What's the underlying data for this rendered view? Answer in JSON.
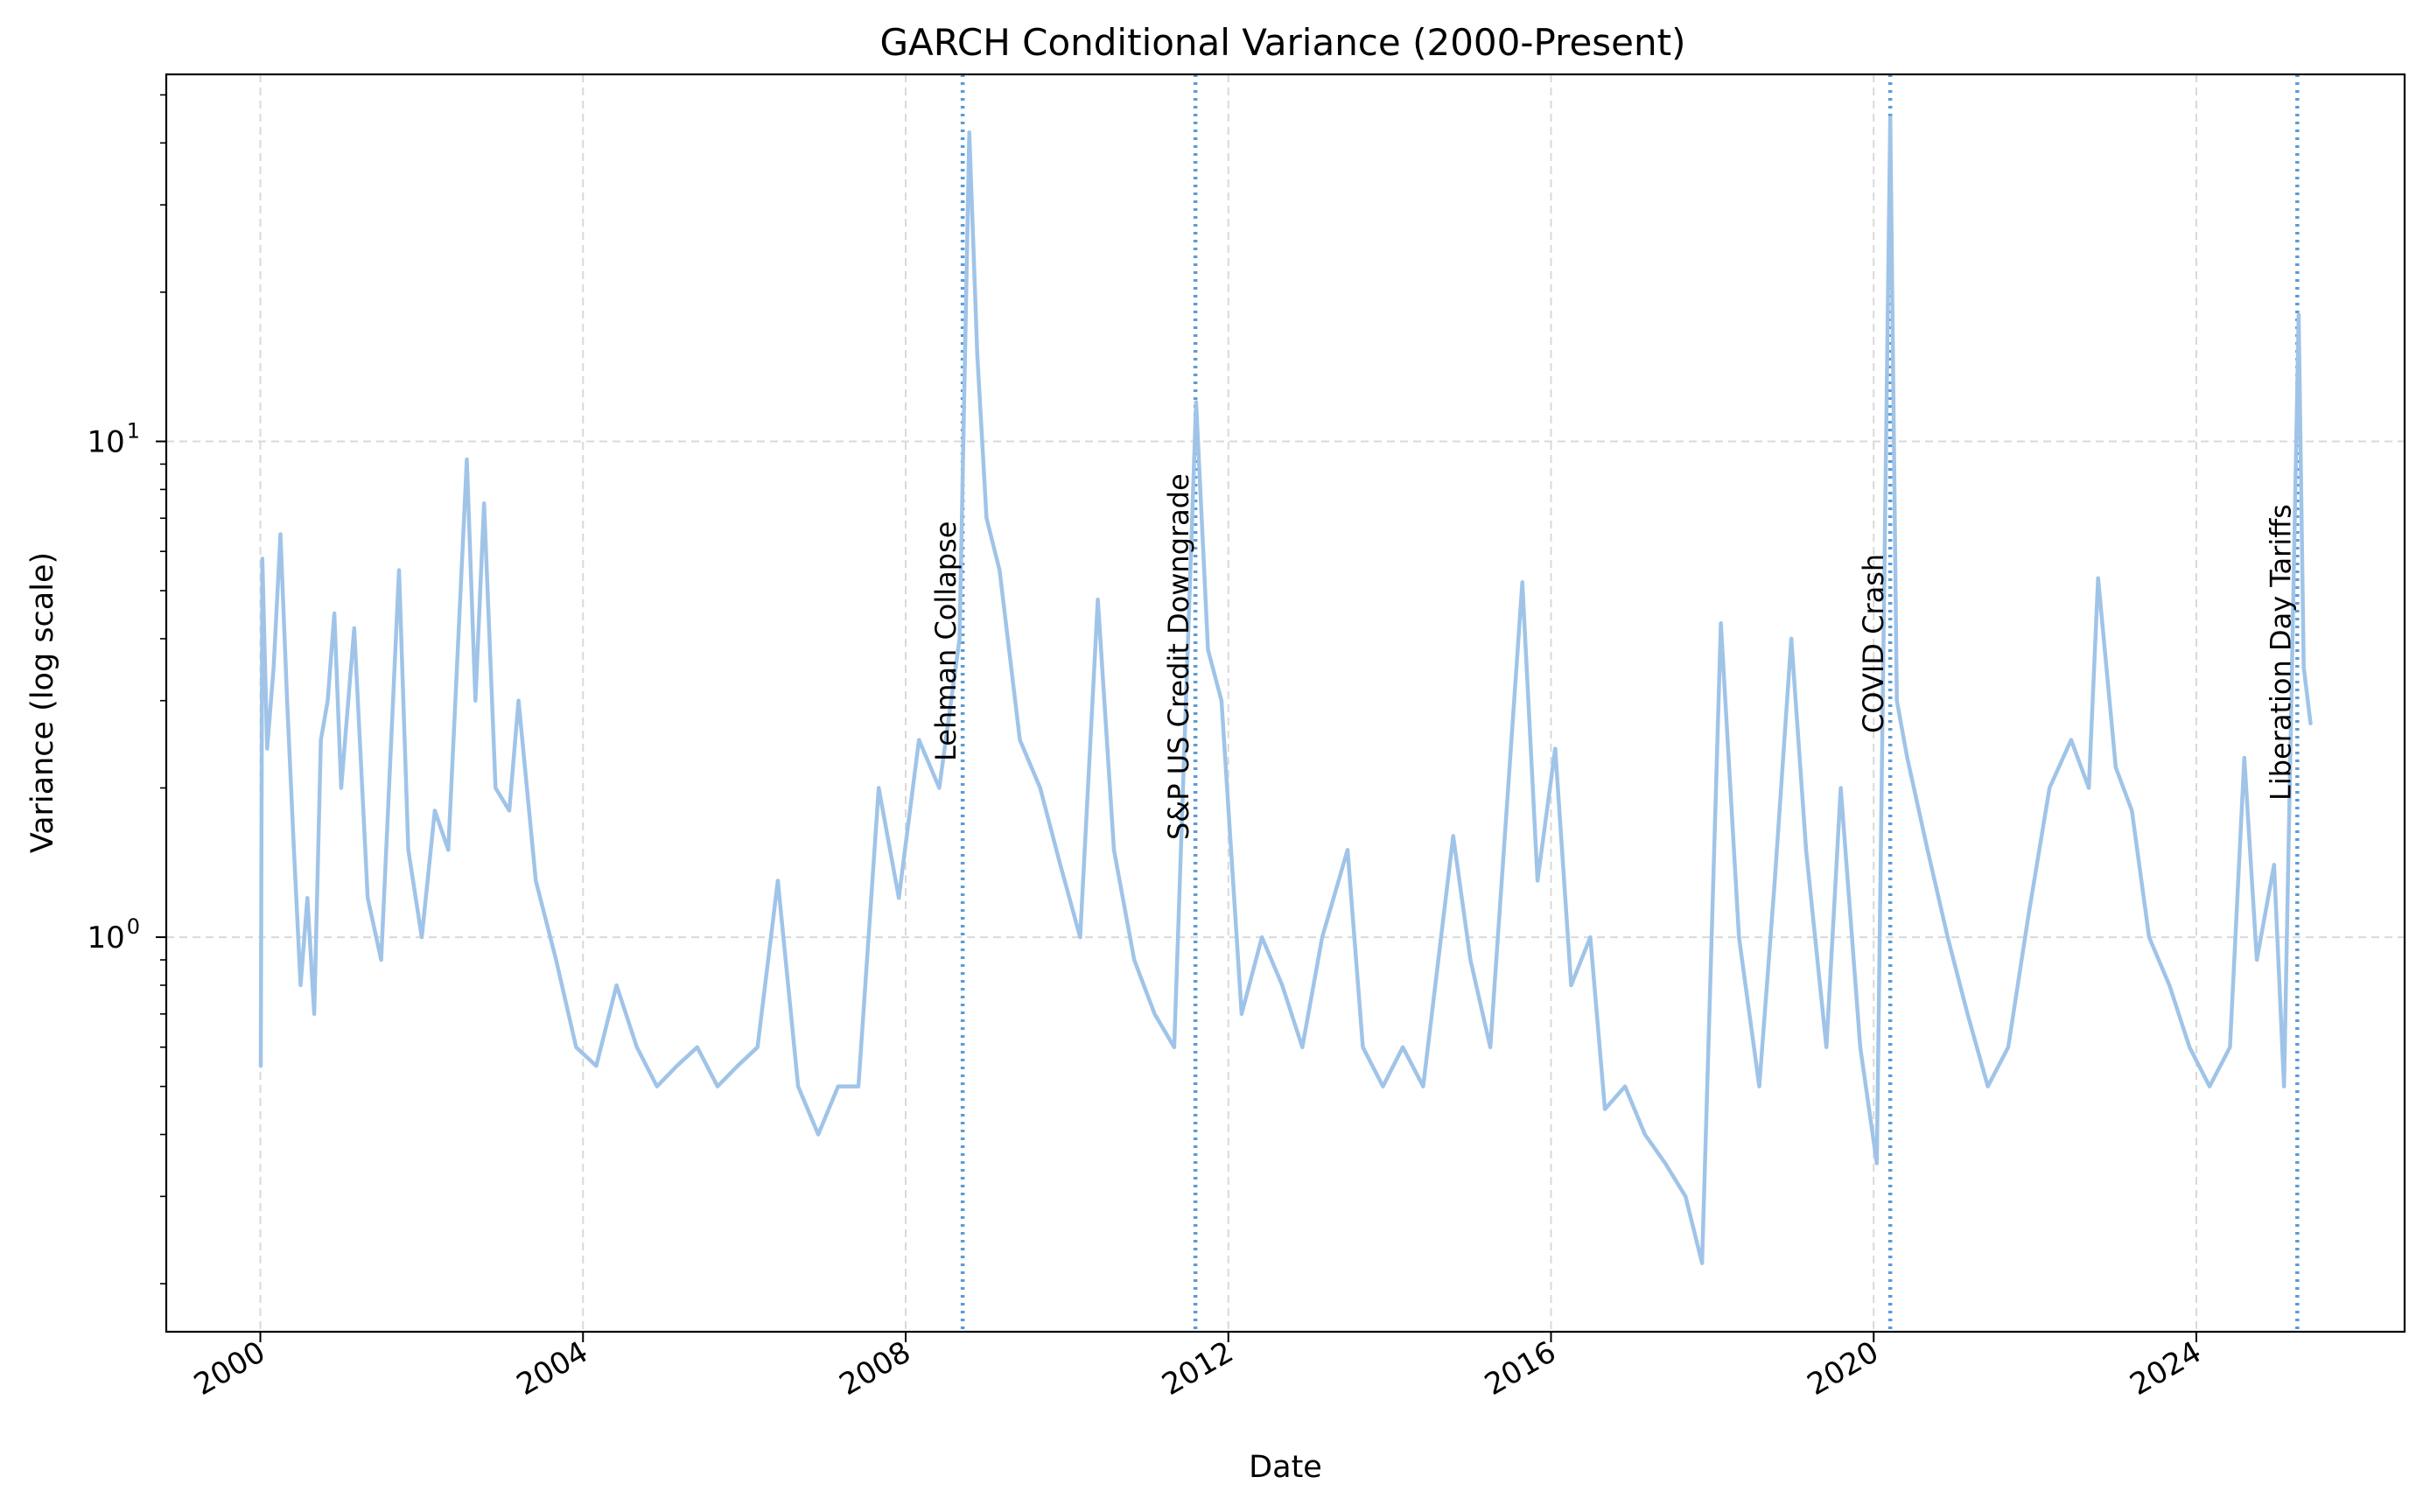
{
  "chart_data": {
    "type": "line",
    "title": "GARCH Conditional Variance (2000-Present)",
    "xlabel": "Date",
    "ylabel": "Variance (log scale)",
    "y_scale": "log",
    "ylim": [
      0.16,
      55
    ],
    "xlim": [
      "1998-11-01",
      "2026-08-01"
    ],
    "grid": true,
    "x_ticks": [
      "2000",
      "2004",
      "2008",
      "2012",
      "2016",
      "2020",
      "2024"
    ],
    "y_ticks": [
      {
        "base": "10",
        "exp": "0",
        "value": 1
      },
      {
        "base": "10",
        "exp": "1",
        "value": 10
      }
    ],
    "line_color": "#a0c4e8",
    "event_line_color": "#5b9bd5",
    "events": [
      {
        "date": "2008-09-15",
        "label": "Lehman Collapse"
      },
      {
        "date": "2011-08-05",
        "label": "S&P US Credit Downgrade"
      },
      {
        "date": "2020-03-16",
        "label": "COVID Crash"
      },
      {
        "date": "2025-04-02",
        "label": "Liberation Day Tariffs"
      }
    ],
    "series": [
      {
        "x": [
          "2000-01-03",
          "2000-01-10",
          "2000-02-01",
          "2000-03-01",
          "2000-04-01",
          "2000-05-01",
          "2000-06-01",
          "2000-07-01",
          "2000-08-01",
          "2000-09-01",
          "2000-10-01",
          "2000-11-01",
          "2000-12-01",
          "2001-01-01",
          "2001-03-01",
          "2001-05-01",
          "2001-07-01",
          "2001-09-20",
          "2001-11-01",
          "2002-01-01",
          "2002-03-01",
          "2002-05-01",
          "2002-07-24",
          "2002-09-01",
          "2002-10-10",
          "2002-12-01",
          "2003-02-01",
          "2003-03-15",
          "2003-06-01",
          "2003-09-01",
          "2003-12-01",
          "2004-03-01",
          "2004-06-01",
          "2004-09-01",
          "2004-12-01",
          "2005-03-01",
          "2005-06-01",
          "2005-09-01",
          "2005-12-01",
          "2006-03-01",
          "2006-06-01",
          "2006-09-01",
          "2006-12-01",
          "2007-03-01",
          "2007-06-01",
          "2007-09-01",
          "2007-12-01",
          "2008-03-01",
          "2008-06-01",
          "2008-09-01",
          "2008-10-15",
          "2008-11-20",
          "2009-01-01",
          "2009-03-01",
          "2009-06-01",
          "2009-09-01",
          "2009-12-01",
          "2010-03-01",
          "2010-05-20",
          "2010-08-01",
          "2010-11-01",
          "2011-02-01",
          "2011-05-01",
          "2011-08-08",
          "2011-10-01",
          "2011-12-01",
          "2012-03-01",
          "2012-06-01",
          "2012-09-01",
          "2012-12-01",
          "2013-03-01",
          "2013-06-24",
          "2013-09-01",
          "2013-12-01",
          "2014-03-01",
          "2014-06-01",
          "2014-10-15",
          "2015-01-01",
          "2015-04-01",
          "2015-08-24",
          "2015-11-01",
          "2016-01-20",
          "2016-04-01",
          "2016-06-27",
          "2016-09-01",
          "2016-12-01",
          "2017-03-01",
          "2017-06-01",
          "2017-09-01",
          "2017-11-15",
          "2018-02-08",
          "2018-05-01",
          "2018-08-01",
          "2018-10-10",
          "2018-12-24",
          "2019-03-01",
          "2019-06-01",
          "2019-08-05",
          "2019-11-01",
          "2020-01-15",
          "2020-03-16",
          "2020-04-15",
          "2020-06-01",
          "2020-09-01",
          "2020-12-01",
          "2021-03-01",
          "2021-06-01",
          "2021-09-01",
          "2021-12-01",
          "2022-03-07",
          "2022-06-13",
          "2022-09-01",
          "2022-10-13",
          "2023-01-01",
          "2023-03-15",
          "2023-06-01",
          "2023-09-01",
          "2023-12-01",
          "2024-03-01",
          "2024-06-01",
          "2024-08-05",
          "2024-10-01",
          "2024-12-18",
          "2025-02-01",
          "2025-04-08",
          "2025-05-01",
          "2025-06-01"
        ],
        "values": [
          0.55,
          5.8,
          2.4,
          3.5,
          6.5,
          3.0,
          1.5,
          0.8,
          1.2,
          0.7,
          2.5,
          3.0,
          4.5,
          2.0,
          4.2,
          1.2,
          0.9,
          5.5,
          1.5,
          1.0,
          1.8,
          1.5,
          9.2,
          3.0,
          7.5,
          2.0,
          1.8,
          3.0,
          1.3,
          0.9,
          0.6,
          0.55,
          0.8,
          0.6,
          0.5,
          0.55,
          0.6,
          0.5,
          0.55,
          0.6,
          1.3,
          0.5,
          0.4,
          0.5,
          0.5,
          2.0,
          1.2,
          2.5,
          2.0,
          4.0,
          42.0,
          15.0,
          7.0,
          5.5,
          2.5,
          2.0,
          1.4,
          1.0,
          4.8,
          1.5,
          0.9,
          0.7,
          0.6,
          12.0,
          3.8,
          3.0,
          0.7,
          1.0,
          0.8,
          0.6,
          1.0,
          1.5,
          0.6,
          0.5,
          0.6,
          0.5,
          1.6,
          0.9,
          0.6,
          5.2,
          1.3,
          2.4,
          0.8,
          1.0,
          0.45,
          0.5,
          0.4,
          0.35,
          0.3,
          0.22,
          4.3,
          1.0,
          0.5,
          1.3,
          4.0,
          1.5,
          0.6,
          2.0,
          0.6,
          0.35,
          45.0,
          3.0,
          2.3,
          1.5,
          1.0,
          0.7,
          0.5,
          0.6,
          1.1,
          2.0,
          2.5,
          2.0,
          5.3,
          2.2,
          1.8,
          1.0,
          0.8,
          0.6,
          0.5,
          0.6,
          2.3,
          0.9,
          1.4,
          0.5,
          18.0,
          3.5,
          2.7
        ]
      }
    ]
  }
}
